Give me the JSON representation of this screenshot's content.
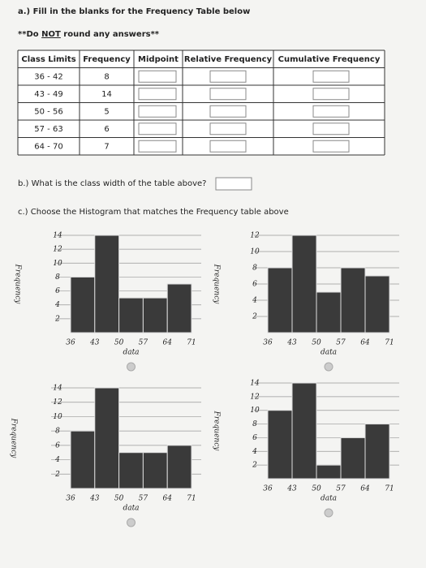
{
  "header": {
    "title": "a.) Fill in the blanks for the Frequency Table below",
    "note_prefix": "**Do ",
    "note_emphasis": "NOT",
    "note_suffix": " round any answers**"
  },
  "table": {
    "columns": [
      "Class Limits",
      "Frequency",
      "Midpoint",
      "Relative Frequency",
      "Cumulative Frequency"
    ],
    "rows": [
      [
        "36 - 42",
        8
      ],
      [
        "43 - 49",
        14
      ],
      [
        "50 - 56",
        5
      ],
      [
        "57 - 63",
        6
      ],
      [
        "64 - 70",
        7
      ]
    ]
  },
  "question_b": "b.) What is the class width of the table above?",
  "question_c": "c.) Choose the Histogram that matches the Frequency table above",
  "histograms": [
    {
      "type": "histogram",
      "ylabel": "Frequency",
      "xlabel": "data",
      "bins": [
        36,
        43,
        50,
        57,
        64,
        71
      ],
      "counts": [
        8,
        14,
        5,
        5,
        7
      ],
      "ylim": [
        0,
        14
      ],
      "yticks": [
        2,
        4,
        6,
        8,
        10,
        12,
        14
      ]
    },
    {
      "type": "histogram",
      "ylabel": "Frequency",
      "xlabel": "data",
      "bins": [
        36,
        43,
        50,
        57,
        64,
        71
      ],
      "counts": [
        8,
        12,
        5,
        8,
        7
      ],
      "ylim": [
        0,
        12
      ],
      "yticks": [
        2,
        4,
        6,
        8,
        10,
        12
      ]
    },
    {
      "type": "histogram",
      "ylabel": "Frequency",
      "xlabel": "data",
      "bins": [
        36,
        43,
        50,
        57,
        64,
        71
      ],
      "counts": [
        8,
        14,
        5,
        5,
        6
      ],
      "ylim": [
        0,
        14
      ],
      "yticks": [
        2,
        4,
        6,
        8,
        10,
        12,
        14
      ]
    },
    {
      "type": "histogram",
      "ylabel": "Frequency",
      "xlabel": "data",
      "bins": [
        36,
        43,
        50,
        57,
        64,
        71
      ],
      "counts": [
        10,
        14,
        2,
        6,
        8
      ],
      "ylim": [
        0,
        14
      ],
      "yticks": [
        2,
        4,
        6,
        8,
        10,
        12,
        14
      ]
    }
  ]
}
